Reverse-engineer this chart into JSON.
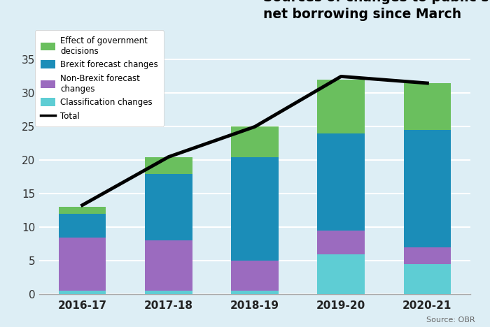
{
  "categories": [
    "2016-17",
    "2017-18",
    "2018-19",
    "2019-20",
    "2020-21"
  ],
  "classification_changes": [
    0.5,
    0.5,
    0.5,
    6.0,
    4.5
  ],
  "non_brexit_changes": [
    8.0,
    7.5,
    4.5,
    3.5,
    2.5
  ],
  "brexit_changes": [
    3.5,
    10.0,
    15.5,
    14.5,
    17.5
  ],
  "govt_decisions": [
    1.0,
    2.5,
    4.5,
    8.0,
    7.0
  ],
  "total_line": [
    13.3,
    20.5,
    25.0,
    32.5,
    31.5
  ],
  "colors": {
    "classification": "#5ecdd4",
    "non_brexit": "#9b6bbf",
    "brexit": "#1b8db8",
    "govt": "#6abf5e"
  },
  "title": "Sources of changes to public sector\nnet borrowing since March",
  "background_color": "#ddeef5",
  "legend_bg": "#ffffff",
  "ylim": [
    0,
    40
  ],
  "yticks": [
    0,
    5,
    10,
    15,
    20,
    25,
    30,
    35
  ],
  "source_text": "Source: OBR",
  "legend_labels": [
    "Effect of government\ndecisions",
    "Brexit forecast changes",
    "Non-Brexit forecast\nchanges",
    "Classification changes",
    "Total"
  ]
}
